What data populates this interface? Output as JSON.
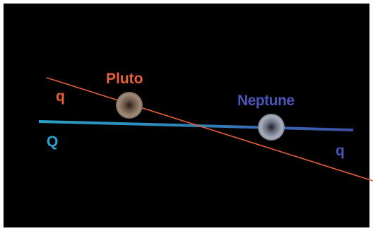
{
  "labels": {
    "pluto": "Pluto",
    "neptune": "Neptune",
    "pluto_orbit": "q",
    "neptune_orbit_right": "q",
    "neptune_orbit_left": "Q"
  },
  "colors": {
    "background": "#000000",
    "frame": "#ffffff",
    "pluto_orbit": "#e0603a",
    "pluto_label": "#e8603a",
    "neptune_orbit_left": "#2a9fc4",
    "neptune_orbit_right": "#3d4fa6",
    "neptune_label": "#4a55b8",
    "q_left_label": "#e8603a",
    "Q_label": "#2aa7d4",
    "q_right_label": "#4a55b8"
  }
}
